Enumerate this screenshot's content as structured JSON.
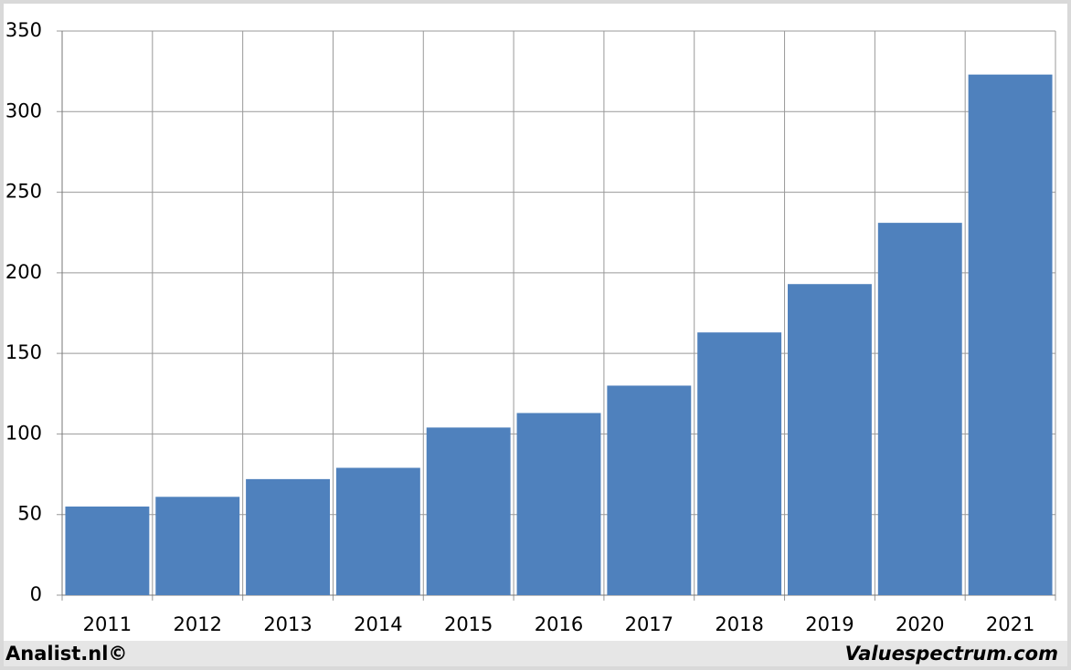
{
  "chart_data": {
    "type": "bar",
    "categories": [
      "2011",
      "2012",
      "2013",
      "2014",
      "2015",
      "2016",
      "2017",
      "2018",
      "2019",
      "2020",
      "2021"
    ],
    "values": [
      55,
      61,
      72,
      79,
      104,
      113,
      130,
      163,
      193,
      231,
      323
    ],
    "color": "#4f81bd",
    "ylim": [
      0,
      350
    ],
    "yticks": [
      0,
      50,
      100,
      150,
      200,
      250,
      300,
      350
    ],
    "grid": true
  },
  "footer": {
    "left": "Analist.nl©",
    "right": "Valuespectrum.com"
  }
}
